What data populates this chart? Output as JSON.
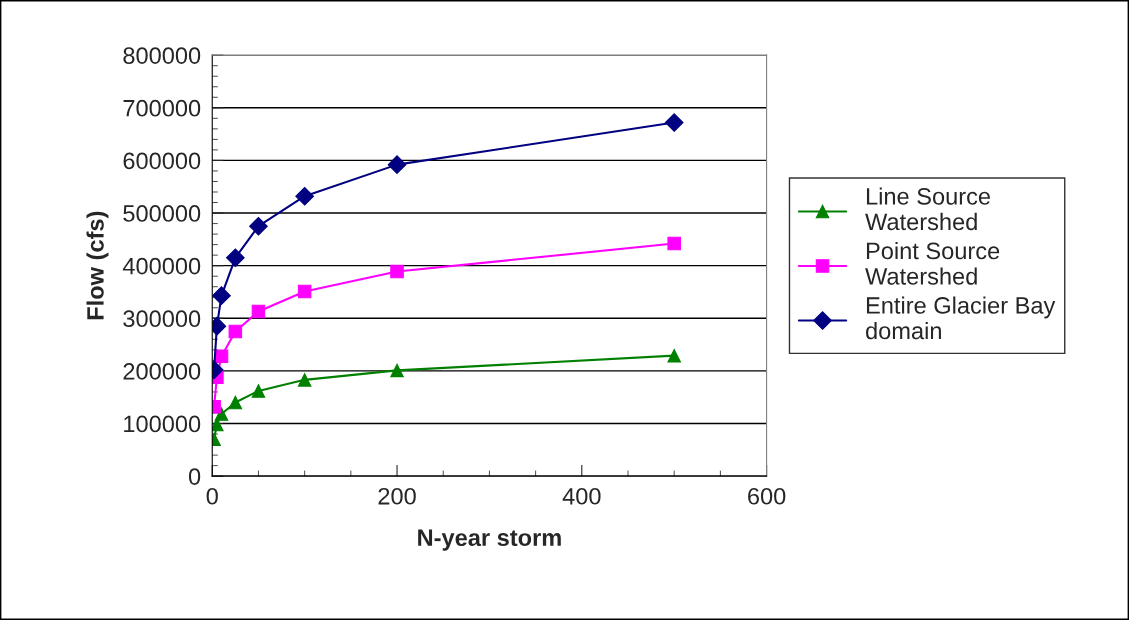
{
  "chart_data": {
    "type": "line",
    "xlabel": "N-year storm",
    "ylabel": "Flow (cfs)",
    "x": [
      2,
      5,
      10,
      25,
      50,
      100,
      200,
      500
    ],
    "series": [
      {
        "name": "Line Source\nWatershed",
        "color": "#008000",
        "marker": "triangle",
        "values": [
          70000,
          98000,
          118000,
          140000,
          162000,
          183000,
          201000,
          229000
        ]
      },
      {
        "name": "Point Source\nWatershed",
        "color": "#ff00ff",
        "marker": "square",
        "values": [
          132000,
          188000,
          228000,
          275000,
          313000,
          351000,
          389000,
          442000
        ]
      },
      {
        "name": "Entire Glacier Bay\ndomain",
        "color": "#000080",
        "marker": "diamond",
        "values": [
          202000,
          285000,
          343000,
          415000,
          475000,
          532000,
          592000,
          672000
        ]
      }
    ],
    "xlim": [
      0,
      600
    ],
    "xticks": [
      0,
      200,
      400,
      600
    ],
    "ylim": [
      0,
      800000
    ],
    "yticks": [
      0,
      100000,
      200000,
      300000,
      400000,
      500000,
      600000,
      700000,
      800000
    ],
    "grid": "y",
    "legend": "right",
    "line_style": "solid"
  }
}
